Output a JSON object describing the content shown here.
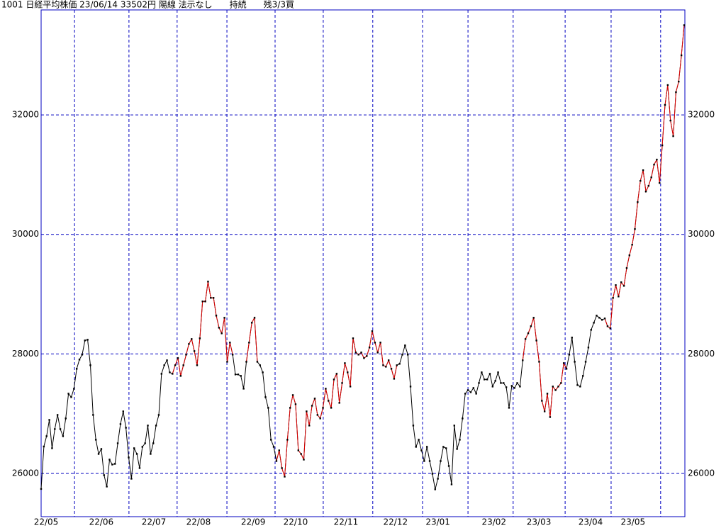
{
  "chart_data": {
    "type": "line",
    "title": "1001 日経平均株価 23/06/14 33502円 陽線 法示なし　　持続　　残3/3買",
    "ylim": [
      25276,
      33757
    ],
    "yticks": [
      26000,
      28000,
      30000,
      32000
    ],
    "grid": true,
    "xlim": [
      0,
      235
    ],
    "xticks": [
      {
        "value": 1.8,
        "label": "22/05"
      },
      {
        "value": 22,
        "label": "22/06"
      },
      {
        "value": 41.2,
        "label": "22/07"
      },
      {
        "value": 57.5,
        "label": "22/08"
      },
      {
        "value": 77.5,
        "label": "22/09"
      },
      {
        "value": 93,
        "label": "22/10"
      },
      {
        "value": 111.4,
        "label": "22/11"
      },
      {
        "value": 129.5,
        "label": "22/12"
      },
      {
        "value": 145,
        "label": "23/01"
      },
      {
        "value": 165.5,
        "label": "23/02"
      },
      {
        "value": 181.9,
        "label": "23/03"
      },
      {
        "value": 200.8,
        "label": "23/04"
      },
      {
        "value": 216.3,
        "label": "23/05"
      }
    ],
    "xgrid": [
      12.2,
      32.1,
      49.7,
      67.9,
      85.5,
      103.1,
      121.2,
      139.4,
      156,
      172.5,
      191.5,
      208.3,
      226.4
    ],
    "series": [
      {
        "color": "#000000",
        "values": [
          25740,
          26450,
          26623,
          26896,
          26421,
          26742,
          26979,
          26742,
          26623,
          26920,
          27335,
          27276,
          27418,
          27751,
          27905,
          27988,
          28225,
          28237,
          27810,
          26979,
          26564,
          26326,
          26409,
          25970,
          25780,
          26231,
          26148,
          26160,
          26504,
          26825,
          27038,
          26765,
          26267,
          25911,
          26421,
          26326,
          26089,
          26445,
          26504,
          26801,
          26326,
          26504,
          26801,
          26979,
          27667,
          27810,
          27893,
          27691,
          27667,
          27810,
          27929,
          27632,
          27810,
          27988,
          28166,
          28249,
          28047,
          27810,
          28261,
          28878,
          28878,
          29211,
          28938,
          28938,
          28641,
          28439,
          28344,
          28605,
          27869,
          28190,
          27988,
          27656,
          27656,
          27632,
          27418,
          27869,
          28190,
          28522,
          28605,
          27869,
          27810,
          27691,
          27276,
          27098,
          26564,
          26445,
          26207,
          26385,
          26089,
          25946,
          26564,
          27098,
          27311,
          27157,
          26385,
          26326,
          26231,
          27038,
          26801,
          27133,
          27252,
          26979,
          26920,
          27098,
          27418,
          27216,
          27098,
          27572,
          27667,
          27181,
          27513,
          27845,
          27691,
          27454,
          28261,
          28024,
          27988,
          28024,
          27929,
          27964,
          28107,
          28380,
          28190,
          28024,
          28190,
          27810,
          27786,
          27893,
          27751,
          27584,
          27810,
          27834,
          27988,
          28142,
          27988,
          27454,
          26801,
          26445,
          26564,
          26385,
          26207,
          26445,
          26207,
          25994,
          25733,
          25911,
          26207,
          26445,
          26421,
          26124,
          25816,
          26801,
          26409,
          26564,
          26920,
          27335,
          27394,
          27359,
          27430,
          27335,
          27513,
          27691,
          27572,
          27572,
          27667,
          27454,
          27549,
          27691,
          27513,
          27513,
          27442,
          27098,
          27466,
          27430,
          27513,
          27454,
          27893,
          28249,
          28344,
          28463,
          28605,
          28225,
          27869,
          27216,
          27038,
          27335,
          26943,
          27454,
          27394,
          27454,
          27513,
          27845,
          27751,
          27988,
          28273,
          27869,
          27478,
          27454,
          27632,
          27869,
          28107,
          28403,
          28522,
          28641,
          28605,
          28570,
          28593,
          28463,
          28427,
          28938,
          29151,
          28961,
          29199,
          29139,
          29436,
          29650,
          29828,
          30089,
          30540,
          30896,
          31074,
          30718,
          30813,
          30955,
          31169,
          31252,
          30860,
          31490,
          32166,
          32499,
          31905,
          31644,
          32380,
          32558,
          32997,
          33502
        ]
      },
      {
        "color": "#e00000",
        "values": [
          null,
          null,
          null,
          null,
          null,
          null,
          null,
          null,
          null,
          null,
          null,
          null,
          null,
          null,
          null,
          null,
          null,
          null,
          null,
          null,
          null,
          null,
          null,
          null,
          null,
          null,
          null,
          null,
          null,
          null,
          null,
          null,
          null,
          null,
          null,
          null,
          null,
          null,
          null,
          null,
          null,
          null,
          null,
          null,
          null,
          null,
          null,
          null,
          27667,
          27810,
          27929,
          27632,
          27810,
          27988,
          28166,
          28249,
          28047,
          27810,
          28261,
          28878,
          28878,
          29211,
          28938,
          28938,
          28641,
          28439,
          28344,
          28605,
          27869,
          28190,
          27988,
          null,
          null,
          null,
          null,
          27869,
          28190,
          28522,
          28605,
          27869,
          null,
          null,
          null,
          null,
          null,
          null,
          26207,
          26385,
          26089,
          25946,
          26564,
          27098,
          27311,
          27157,
          26385,
          26326,
          26231,
          27038,
          26801,
          27133,
          27252,
          26979,
          26920,
          27098,
          27418,
          27216,
          27098,
          27572,
          27667,
          27181,
          27513,
          27845,
          27691,
          27454,
          28261,
          28024,
          27988,
          28024,
          27929,
          27964,
          28107,
          28380,
          28190,
          28024,
          28190,
          27810,
          27786,
          27893,
          27751,
          27584,
          27810,
          null,
          null,
          null,
          null,
          null,
          null,
          null,
          null,
          null,
          null,
          null,
          null,
          null,
          null,
          null,
          null,
          null,
          null,
          null,
          null,
          null,
          null,
          null,
          null,
          null,
          null,
          null,
          null,
          null,
          null,
          null,
          null,
          null,
          null,
          null,
          null,
          null,
          null,
          null,
          null,
          null,
          null,
          null,
          null,
          null,
          27893,
          28249,
          28344,
          28463,
          28605,
          28225,
          27869,
          27216,
          27038,
          27335,
          26943,
          27454,
          27394,
          27454,
          27513,
          27845,
          27751,
          null,
          null,
          null,
          null,
          null,
          null,
          null,
          null,
          null,
          null,
          null,
          null,
          null,
          28593,
          28463,
          28427,
          28938,
          29151,
          28961,
          29199,
          29139,
          29436,
          29650,
          29828,
          30089,
          30540,
          30896,
          31074,
          30718,
          30813,
          30955,
          31169,
          31252,
          30860,
          31490,
          32166,
          32499,
          31905,
          31644,
          32380,
          32558,
          32997,
          33502
        ]
      }
    ]
  }
}
